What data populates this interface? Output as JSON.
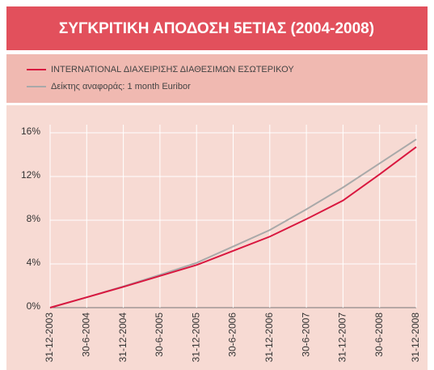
{
  "chart_data": {
    "type": "line",
    "title": "ΣΥΓΚΡΙΤΙΚΗ ΑΠΟΔΟΣΗ 5ΕΤΙΑΣ (2004-2008)",
    "categories": [
      "31-12-2003",
      "30-6-2004",
      "31-12-2004",
      "30-6-2005",
      "31-12-2005",
      "30-6-2006",
      "31-12-2006",
      "30-6-2007",
      "31-12-2007",
      "30-6-2008",
      "31-12-2008"
    ],
    "series": [
      {
        "name": "INTERNATIONAL ΔΙΑΧΕΙΡΙΣΗΣ ΔΙΑΘΕΣΙΜΩΝ ΕΣΩΤΕΡΙΚΟΥ",
        "color": "#d9173f",
        "values": [
          0,
          0.95,
          1.9,
          2.9,
          3.9,
          5.2,
          6.5,
          8.1,
          9.8,
          12.2,
          14.7
        ]
      },
      {
        "name": "Δείκτης αναφοράς: 1 month Euribor",
        "color": "#a9a9a9",
        "values": [
          0,
          0.95,
          1.95,
          3.0,
          4.1,
          5.6,
          7.1,
          9.0,
          11.0,
          13.2,
          15.4
        ]
      }
    ],
    "ylim": [
      0,
      16
    ],
    "yticks": [
      {
        "value": 0,
        "label": "0%"
      },
      {
        "value": 4,
        "label": "4%"
      },
      {
        "value": 8,
        "label": "8%"
      },
      {
        "value": 12,
        "label": "12%"
      },
      {
        "value": 16,
        "label": "16%"
      }
    ],
    "grid": true
  }
}
